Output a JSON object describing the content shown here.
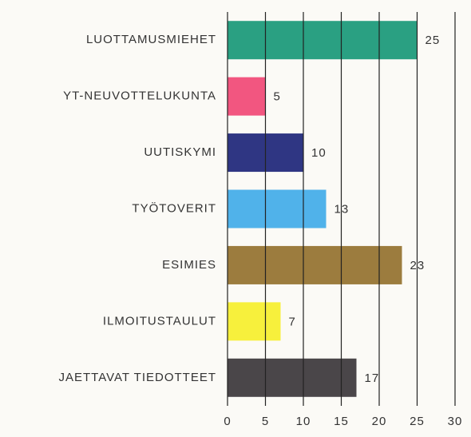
{
  "chart_data": {
    "type": "bar",
    "orientation": "horizontal",
    "categories": [
      "LUOTTAMUSMIEHET",
      "YT-NEUVOTTELUKUNTA",
      "UUTISKYMI",
      "TYÖTOVERIT",
      "ESIMIES",
      "ILMOITUSTAULUT",
      "JAETTAVAT TIEDOTTEET"
    ],
    "values": [
      25,
      5,
      10,
      13,
      23,
      7,
      17
    ],
    "colors": [
      "#2aa082",
      "#f25680",
      "#2f3683",
      "#50b2ea",
      "#9c7c3e",
      "#f7f03c",
      "#4a4649"
    ],
    "xlim": [
      0,
      30
    ],
    "xticks": [
      0,
      5,
      10,
      15,
      20,
      25,
      30
    ],
    "grid": true
  }
}
